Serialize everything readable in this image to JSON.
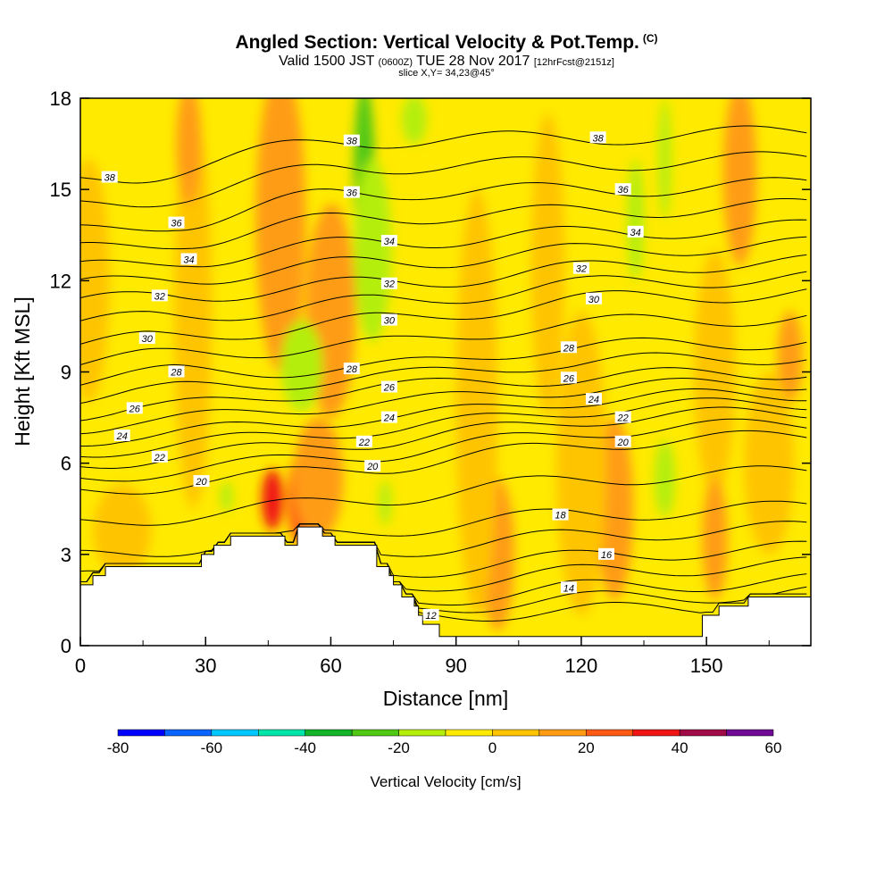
{
  "header": {
    "title": "Angled Section: Vertical Velocity & Pot.Temp.",
    "title_units": "(C)",
    "subtitle_pre": "Valid 1500 JST",
    "subtitle_zulu": "(0600Z)",
    "subtitle_date": "TUE 28 Nov 2017",
    "subtitle_fcst": "[12hrFcst@2151z]",
    "slice": "slice X,Y= 34,23@45°"
  },
  "chart_data": {
    "type": "heatmap",
    "xlabel": "Distance [nm]",
    "ylabel": "Height [Kft MSL]",
    "xlim": [
      0,
      175
    ],
    "ylim": [
      0,
      18
    ],
    "x_ticks": [
      "0",
      "30",
      "60",
      "90",
      "120",
      "150"
    ],
    "x_tick_values": [
      0,
      30,
      60,
      90,
      120,
      150
    ],
    "y_ticks": [
      "0",
      "3",
      "6",
      "9",
      "12",
      "15",
      "18"
    ],
    "y_tick_values": [
      0,
      3,
      6,
      9,
      12,
      15,
      18
    ],
    "colorbar": {
      "title": "Vertical Velocity [cm/s]",
      "labels": [
        "-80",
        "-60",
        "-40",
        "-20",
        "0",
        "20",
        "40",
        "60"
      ],
      "label_values": [
        -80,
        -60,
        -40,
        -20,
        0,
        20,
        40,
        60
      ],
      "bins": [
        {
          "lo": -80,
          "hi": -70,
          "color": "#0000ff"
        },
        {
          "lo": -70,
          "hi": -60,
          "color": "#0a64ff"
        },
        {
          "lo": -60,
          "hi": -50,
          "color": "#00c8ff"
        },
        {
          "lo": -50,
          "hi": -40,
          "color": "#00e6aa"
        },
        {
          "lo": -40,
          "hi": -30,
          "color": "#14b428"
        },
        {
          "lo": -30,
          "hi": -20,
          "color": "#50c814"
        },
        {
          "lo": -20,
          "hi": -10,
          "color": "#b4ee0a"
        },
        {
          "lo": -10,
          "hi": 0,
          "color": "#ffea00"
        },
        {
          "lo": 0,
          "hi": 10,
          "color": "#ffc400"
        },
        {
          "lo": 10,
          "hi": 20,
          "color": "#ff9c14"
        },
        {
          "lo": 20,
          "hi": 30,
          "color": "#ff5a14"
        },
        {
          "lo": 30,
          "hi": 40,
          "color": "#f01414"
        },
        {
          "lo": 40,
          "hi": 50,
          "color": "#a00a46"
        },
        {
          "lo": 50,
          "hi": 60,
          "color": "#6e0a96"
        }
      ]
    },
    "terrain": {
      "x": [
        0,
        3,
        3,
        6,
        6,
        10,
        10,
        19,
        19,
        29,
        29,
        32,
        32,
        36,
        36,
        49,
        49,
        52,
        52,
        58,
        58,
        61,
        61,
        71,
        71,
        74,
        74,
        75,
        75,
        77,
        77,
        80,
        80,
        81,
        81,
        82,
        82,
        86,
        86,
        90,
        90,
        95,
        95,
        109,
        109,
        112,
        112,
        125,
        125,
        129,
        129,
        135,
        135,
        149,
        149,
        153,
        153,
        160,
        160,
        175
      ],
      "y": [
        2.0,
        2.0,
        2.3,
        2.3,
        2.6,
        2.6,
        2.6,
        2.6,
        2.6,
        2.6,
        3.0,
        3.0,
        3.3,
        3.3,
        3.6,
        3.6,
        3.3,
        3.3,
        3.9,
        3.9,
        3.6,
        3.6,
        3.3,
        3.3,
        2.6,
        2.6,
        2.3,
        2.3,
        2.0,
        2.0,
        1.6,
        1.6,
        1.3,
        1.3,
        1.0,
        1.0,
        0.7,
        0.7,
        0.3,
        0.3,
        0.3,
        0.3,
        0.3,
        0.3,
        0.3,
        0.3,
        0.3,
        0.3,
        0.3,
        0.3,
        0.3,
        0.3,
        0.3,
        0.3,
        1.0,
        1.0,
        1.3,
        1.3,
        1.6,
        1.6
      ]
    },
    "velocity_features": [
      {
        "x": 50,
        "y": 16.8,
        "w": 5,
        "h": 2.6,
        "value": 35
      },
      {
        "x": 48,
        "y": 14.0,
        "w": 12,
        "h": 10,
        "value": 15
      },
      {
        "x": 61,
        "y": 12.5,
        "w": 5,
        "h": 4,
        "value": 30
      },
      {
        "x": 60,
        "y": 11.0,
        "w": 12,
        "h": 7,
        "value": 15
      },
      {
        "x": 68,
        "y": 15.5,
        "w": 5,
        "h": 6,
        "value": -25
      },
      {
        "x": 70,
        "y": 13.0,
        "w": 9,
        "h": 6,
        "value": -15
      },
      {
        "x": 80,
        "y": 17.3,
        "w": 6,
        "h": 1.6,
        "value": -15
      },
      {
        "x": 53,
        "y": 9.2,
        "w": 10,
        "h": 3,
        "value": -15
      },
      {
        "x": 46,
        "y": 4.8,
        "w": 5,
        "h": 2,
        "value": 30
      },
      {
        "x": 53,
        "y": 4.8,
        "w": 7,
        "h": 3,
        "value": 25
      },
      {
        "x": 57,
        "y": 5.5,
        "w": 12,
        "h": 4,
        "value": 15
      },
      {
        "x": 73,
        "y": 4.7,
        "w": 3,
        "h": 1.5,
        "value": -15
      },
      {
        "x": 35,
        "y": 4.9,
        "w": 3,
        "h": 1,
        "value": -15
      },
      {
        "x": 10,
        "y": 3.8,
        "w": 14,
        "h": 3,
        "value": 5
      },
      {
        "x": 27,
        "y": 11.0,
        "w": 9,
        "h": 13,
        "value": 5
      },
      {
        "x": 26,
        "y": 16.5,
        "w": 6,
        "h": 4,
        "value": 15
      },
      {
        "x": 128,
        "y": 4.6,
        "w": 3,
        "h": 2,
        "value": 35
      },
      {
        "x": 128,
        "y": 4.5,
        "w": 9,
        "h": 6,
        "value": 15
      },
      {
        "x": 120,
        "y": 6.0,
        "w": 12,
        "h": 10,
        "value": 5
      },
      {
        "x": 133,
        "y": 14.0,
        "w": 4,
        "h": 4,
        "value": -15
      },
      {
        "x": 140,
        "y": 16.0,
        "w": 3,
        "h": 4,
        "value": -15
      },
      {
        "x": 140,
        "y": 5.5,
        "w": 5,
        "h": 2.5,
        "value": -15
      },
      {
        "x": 158,
        "y": 17.2,
        "w": 5,
        "h": 2.2,
        "value": 30
      },
      {
        "x": 158,
        "y": 15.5,
        "w": 8,
        "h": 6,
        "value": 15
      },
      {
        "x": 112,
        "y": 12.5,
        "w": 8,
        "h": 10,
        "value": 5
      },
      {
        "x": 152,
        "y": 9.0,
        "w": 10,
        "h": 8,
        "value": 5
      },
      {
        "x": 152,
        "y": 3.5,
        "w": 6,
        "h": 4,
        "value": 15
      },
      {
        "x": 100,
        "y": 3.0,
        "w": 8,
        "h": 5,
        "value": 15
      },
      {
        "x": 95,
        "y": 8.0,
        "w": 10,
        "h": 14,
        "value": 5
      },
      {
        "x": 170,
        "y": 9.5,
        "w": 6,
        "h": 3,
        "value": 15
      },
      {
        "x": 165,
        "y": 6.0,
        "w": 12,
        "h": 6,
        "value": 5
      },
      {
        "x": 2,
        "y": 12.0,
        "w": 10,
        "h": 8,
        "value": 5
      }
    ],
    "isentropes": {
      "levels": [
        12,
        14,
        16,
        18,
        20,
        22,
        24,
        26,
        28,
        30,
        32,
        34,
        36,
        38
      ],
      "labels": [
        {
          "text": "12",
          "x": 84,
          "y": 1.0
        },
        {
          "text": "14",
          "x": 117,
          "y": 1.9
        },
        {
          "text": "16",
          "x": 126,
          "y": 3.0
        },
        {
          "text": "18",
          "x": 115,
          "y": 4.3
        },
        {
          "text": "20",
          "x": 29,
          "y": 5.4
        },
        {
          "text": "20",
          "x": 70,
          "y": 5.9
        },
        {
          "text": "20",
          "x": 130,
          "y": 6.7
        },
        {
          "text": "22",
          "x": 19,
          "y": 6.2
        },
        {
          "text": "22",
          "x": 68,
          "y": 6.7
        },
        {
          "text": "22",
          "x": 130,
          "y": 7.5
        },
        {
          "text": "24",
          "x": 10,
          "y": 6.9
        },
        {
          "text": "24",
          "x": 74,
          "y": 7.5
        },
        {
          "text": "24",
          "x": 123,
          "y": 8.1
        },
        {
          "text": "26",
          "x": 13,
          "y": 7.8
        },
        {
          "text": "26",
          "x": 74,
          "y": 8.5
        },
        {
          "text": "26",
          "x": 117,
          "y": 8.8
        },
        {
          "text": "28",
          "x": 23,
          "y": 9.0
        },
        {
          "text": "28",
          "x": 65,
          "y": 9.1
        },
        {
          "text": "28",
          "x": 117,
          "y": 9.8
        },
        {
          "text": "30",
          "x": 16,
          "y": 10.1
        },
        {
          "text": "30",
          "x": 74,
          "y": 10.7
        },
        {
          "text": "30",
          "x": 123,
          "y": 11.4
        },
        {
          "text": "32",
          "x": 19,
          "y": 11.5
        },
        {
          "text": "32",
          "x": 74,
          "y": 11.9
        },
        {
          "text": "32",
          "x": 120,
          "y": 12.4
        },
        {
          "text": "34",
          "x": 26,
          "y": 12.7
        },
        {
          "text": "34",
          "x": 74,
          "y": 13.3
        },
        {
          "text": "34",
          "x": 133,
          "y": 13.6
        },
        {
          "text": "36",
          "x": 23,
          "y": 13.9
        },
        {
          "text": "36",
          "x": 65,
          "y": 14.9
        },
        {
          "text": "36",
          "x": 130,
          "y": 15.0
        },
        {
          "text": "38",
          "x": 7,
          "y": 15.4
        },
        {
          "text": "38",
          "x": 65,
          "y": 16.6
        },
        {
          "text": "38",
          "x": 124,
          "y": 16.7
        }
      ]
    }
  }
}
